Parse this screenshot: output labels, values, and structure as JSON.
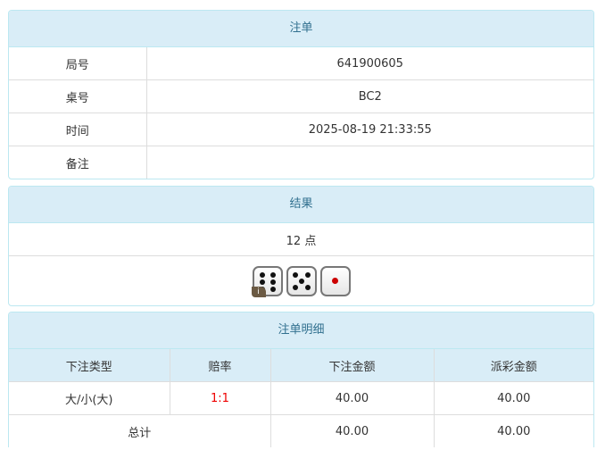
{
  "bet": {
    "title": "注单",
    "rows": [
      {
        "label": "局号",
        "value": "641900605"
      },
      {
        "label": "桌号",
        "value": "BC2"
      },
      {
        "label": "时间",
        "value": "2025-08-19 21:33:55"
      },
      {
        "label": "备注",
        "value": ""
      }
    ]
  },
  "result": {
    "title": "结果",
    "points": "12 点",
    "dice": [
      6,
      5,
      1
    ],
    "info_badge": "i"
  },
  "detail": {
    "title": "注单明细",
    "headers": [
      "下注类型",
      "赔率",
      "下注金额",
      "派彩金额"
    ],
    "rows": [
      {
        "type": "大/小(大)",
        "odds": "1:1",
        "bet": "40.00",
        "payout": "40.00"
      }
    ],
    "total": {
      "label": "总计",
      "bet": "40.00",
      "payout": "40.00"
    }
  },
  "colors": {
    "header_bg": "#d9edf7",
    "header_text": "#31708f",
    "odds": "#ee0000"
  }
}
